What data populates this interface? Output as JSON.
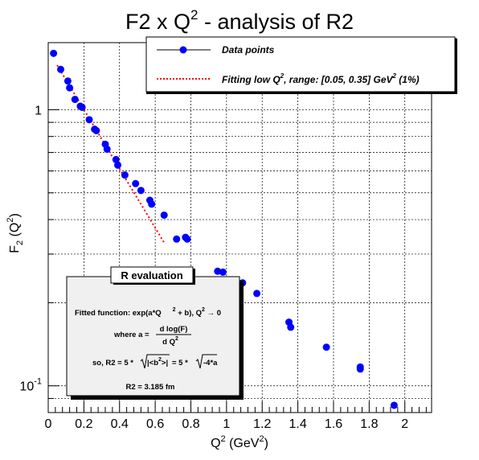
{
  "chart_data": {
    "type": "scatter",
    "title": "F2 x Q",
    "title_sup": "2",
    "title_tail": " - analysis of R2",
    "xlabel": "Q",
    "xlabel_sup": "2",
    "xlabel_tail": " (GeV",
    "xlabel_sup2": "2",
    "xlabel_close": ")",
    "ylabel": "F",
    "ylabel_sub": "2",
    "ylabel_tail": " (Q",
    "ylabel_sup": "2",
    "ylabel_close": ")",
    "xlim": [
      0,
      2.15
    ],
    "ylim": [
      0.08,
      1.75
    ],
    "yscale": "log",
    "grid": true,
    "x_ticks": [
      0,
      0.2,
      0.4,
      0.6,
      0.8,
      1,
      1.2,
      1.4,
      1.6,
      1.8,
      2
    ],
    "x_tick_labels": [
      "0",
      "0.2",
      "0.4",
      "0.6",
      "0.8",
      "1",
      "1.2",
      "1.4",
      "1.6",
      "1.8",
      "2"
    ],
    "y_major_ticks": [
      0.1,
      1
    ],
    "y_tick_labels": [
      {
        "base": "10",
        "exp": "-1",
        "value": 0.1
      },
      {
        "base": "1",
        "exp": "",
        "value": 1
      }
    ],
    "series": [
      {
        "name": "Data points",
        "type": "scatter",
        "color": "#0000ff",
        "x": [
          0.03,
          0.07,
          0.11,
          0.12,
          0.15,
          0.18,
          0.19,
          0.23,
          0.26,
          0.27,
          0.32,
          0.33,
          0.38,
          0.39,
          0.43,
          0.49,
          0.52,
          0.57,
          0.58,
          0.65,
          0.72,
          0.77,
          0.78,
          0.95,
          0.98,
          1.09,
          1.17,
          1.35,
          1.36,
          1.56,
          1.75,
          1.75,
          1.94
        ],
        "y": [
          1.6,
          1.4,
          1.27,
          1.2,
          1.09,
          1.03,
          1.02,
          0.92,
          0.85,
          0.84,
          0.75,
          0.72,
          0.66,
          0.63,
          0.58,
          0.54,
          0.51,
          0.47,
          0.455,
          0.415,
          0.34,
          0.345,
          0.34,
          0.26,
          0.258,
          0.236,
          0.216,
          0.17,
          0.163,
          0.138,
          0.117,
          0.115,
          0.085
        ]
      },
      {
        "name": "Fitting low Q",
        "name_sup": "2",
        "name_tail": ", range: [0.05, 0.35] GeV",
        "name_sup2": "2",
        "name_close": " (1%)",
        "type": "line",
        "color": "#ff0000",
        "style": "dotted",
        "x": [
          0.05,
          0.65
        ],
        "y": [
          1.45,
          0.33
        ]
      }
    ],
    "legend_placement": "top-right",
    "annotation": {
      "title": "R evaluation",
      "line1": "Fitted function: exp(a*Q",
      "line1_sup": "2",
      "line1_mid": " + b), Q",
      "line1_sup2": "2",
      "line1_tail": " → 0",
      "where": "where a =",
      "frac_num": "d log(F)",
      "frac_den": "d Q",
      "frac_den_sup": "2",
      "so_prefix": "so, R2 = 5 *",
      "so_root1": "|<b",
      "so_root1_sup": "2",
      "so_root1_close": ">|",
      "so_eq": "= 5 *",
      "so_root2": "-4*a",
      "result": "R2 = 3.185 fm"
    }
  }
}
